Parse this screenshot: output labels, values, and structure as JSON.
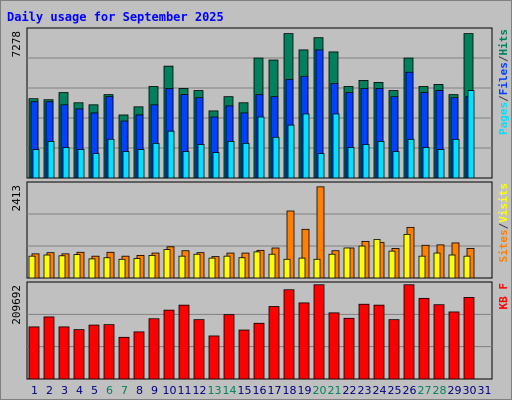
{
  "colors": {
    "background": "#c0c0c0",
    "title": "#0000ff",
    "hits": "#00805c",
    "files": "#0040ff",
    "pages": "#00e0ff",
    "visits": "#ffff00",
    "sites": "#ff8000",
    "kbytes": "#ff0000",
    "weekend": "#00805c",
    "weekday": "#000080"
  },
  "chart_data": {
    "type": "bar",
    "title": "Daily usage for September 2025",
    "categories": [
      "1",
      "2",
      "3",
      "4",
      "5",
      "6",
      "7",
      "8",
      "9",
      "10",
      "11",
      "12",
      "13",
      "14",
      "15",
      "16",
      "17",
      "18",
      "19",
      "20",
      "21",
      "22",
      "23",
      "24",
      "25",
      "26",
      "27",
      "28",
      "29",
      "30",
      "31"
    ],
    "weekend_days": [
      "6",
      "7",
      "13",
      "14",
      "20",
      "21",
      "27",
      "28"
    ],
    "panels": [
      {
        "name": "hits-files-pages",
        "max_label": "7278",
        "ylim": [
          0,
          7278
        ],
        "legend": [
          {
            "label": "Pages",
            "color": "#00e0ff"
          },
          {
            "label": "/",
            "color": "#404040"
          },
          {
            "label": "Files",
            "color": "#0040ff"
          },
          {
            "label": "/",
            "color": "#404040"
          },
          {
            "label": "Hits",
            "color": "#00805c"
          }
        ],
        "series": [
          {
            "name": "Hits",
            "color": "#00805c",
            "values": [
              3900,
              3850,
              4200,
              3700,
              3600,
              4100,
              3100,
              3500,
              4500,
              5500,
              4400,
              4300,
              3300,
              4000,
              3700,
              5900,
              5800,
              7100,
              6300,
              6900,
              6200,
              4500,
              4800,
              4700,
              4300,
              5900,
              4500,
              4600,
              4100,
              7100,
              null
            ]
          },
          {
            "name": "Files",
            "color": "#0040ff",
            "values": [
              3750,
              3750,
              3600,
              3400,
              3200,
              4000,
              2800,
              3100,
              3600,
              4400,
              4100,
              3950,
              3000,
              3550,
              3200,
              4100,
              4000,
              4850,
              5000,
              6300,
              4650,
              4200,
              4400,
              4400,
              4000,
              5200,
              4200,
              4300,
              3950,
              4000,
              null
            ]
          },
          {
            "name": "Pages",
            "color": "#00e0ff",
            "values": [
              1400,
              1800,
              1500,
              1400,
              1200,
              1900,
              1300,
              1400,
              1700,
              2300,
              1300,
              1650,
              1250,
              1800,
              1700,
              3000,
              2000,
              2600,
              3150,
              1200,
              3150,
              1500,
              1650,
              1800,
              1300,
              1900,
              1500,
              1400,
              1900,
              4300,
              null
            ]
          }
        ]
      },
      {
        "name": "visits-sites",
        "max_label": "2413",
        "ylim": [
          0,
          2413
        ],
        "legend": [
          {
            "label": "Sites",
            "color": "#ff8000"
          },
          {
            "label": "/",
            "color": "#404040"
          },
          {
            "label": "Visits",
            "color": "#ffff00"
          }
        ],
        "series": [
          {
            "name": "Visits",
            "color": "#ffff00",
            "values": [
              560,
              590,
              570,
              600,
              490,
              520,
              480,
              500,
              580,
              730,
              560,
              610,
              510,
              560,
              520,
              670,
              610,
              480,
              510,
              480,
              610,
              770,
              820,
              990,
              690,
              1120,
              560,
              640,
              590,
              560,
              null
            ]
          },
          {
            "name": "Sites",
            "color": "#ff8000",
            "values": [
              620,
              650,
              620,
              660,
              560,
              660,
              560,
              580,
              640,
              800,
              700,
              650,
              550,
              640,
              640,
              710,
              770,
              1720,
              1250,
              2340,
              700,
              770,
              940,
              910,
              760,
              1300,
              840,
              850,
              900,
              760,
              null
            ]
          }
        ]
      },
      {
        "name": "kbytes",
        "max_label": "209692",
        "ylim": [
          0,
          209692
        ],
        "legend": [
          {
            "label": "KB F",
            "color": "#ff0000"
          }
        ],
        "series": [
          {
            "name": "KB F",
            "color": "#ff0000",
            "values": [
              115000,
              137000,
              115000,
              109000,
              119000,
              120000,
              92000,
              104000,
              133000,
              152000,
              163000,
              131000,
              95000,
              142000,
              108000,
              123000,
              160000,
              197000,
              168000,
              208000,
              146000,
              134000,
              165000,
              163000,
              131000,
              208000,
              178000,
              164000,
              148000,
              180000,
              null
            ]
          }
        ]
      }
    ]
  }
}
